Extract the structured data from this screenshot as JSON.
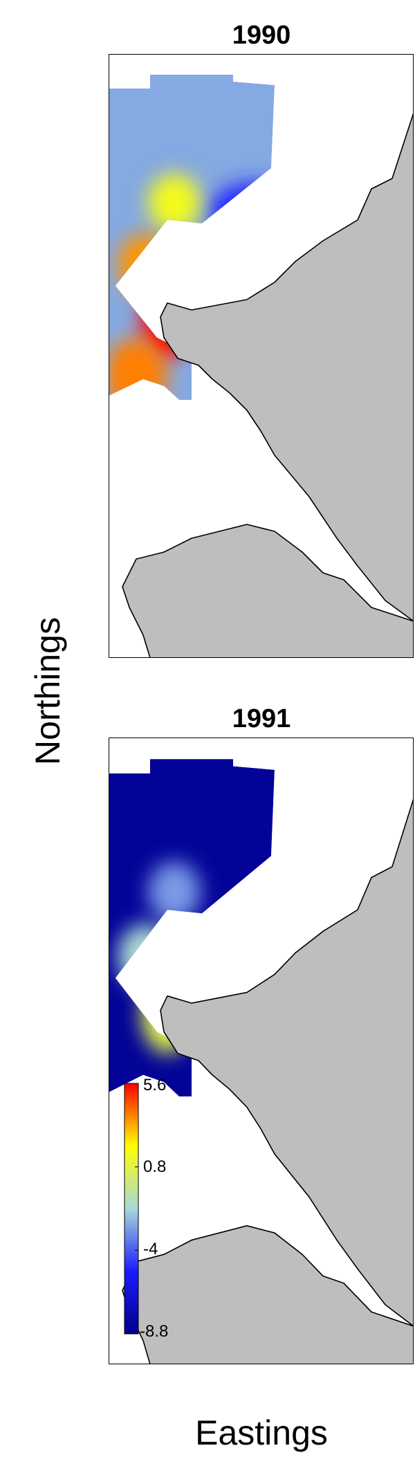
{
  "axes": {
    "xlabel": "Eastings",
    "ylabel": "Northings"
  },
  "colorbar": {
    "ticks": [
      "5.6",
      "0.8",
      "-4",
      "-8.8"
    ],
    "tick_values": [
      5.6,
      0.8,
      -4,
      -8.8
    ],
    "min": -8.8,
    "max": 5.6,
    "colors": [
      "#00008b",
      "#1c1cff",
      "#a8d8d8",
      "#ffff00",
      "#ff0000"
    ]
  },
  "colors": {
    "land": "#bebebe",
    "coast": "#000000",
    "background": "#ffffff"
  },
  "chart_data": [
    {
      "type": "heatmap",
      "title": "1990",
      "xlabel": "Eastings",
      "ylabel": "Northings",
      "zlim": [
        -8.8,
        5.6
      ],
      "hotspots": [
        {
          "region": "upper-middle",
          "value": 1.5
        },
        {
          "region": "middle-left",
          "value": 3.5
        },
        {
          "region": "middle",
          "value": 2.8
        },
        {
          "region": "coastal-center",
          "value": 5.6
        },
        {
          "region": "lower-left",
          "value": 3.8
        }
      ],
      "background_value": -2.5,
      "low_region": {
        "region": "upper-right",
        "value": -5
      }
    },
    {
      "type": "heatmap",
      "title": "1991",
      "xlabel": "Eastings",
      "ylabel": "Northings",
      "zlim": [
        -8.8,
        5.6
      ],
      "hotspots": [
        {
          "region": "upper-middle",
          "value": -2.8
        },
        {
          "region": "middle-left",
          "value": -1.5
        },
        {
          "region": "middle",
          "value": -1
        },
        {
          "region": "coastal-center",
          "value": 0.8
        }
      ],
      "background_value": -8.4
    }
  ]
}
